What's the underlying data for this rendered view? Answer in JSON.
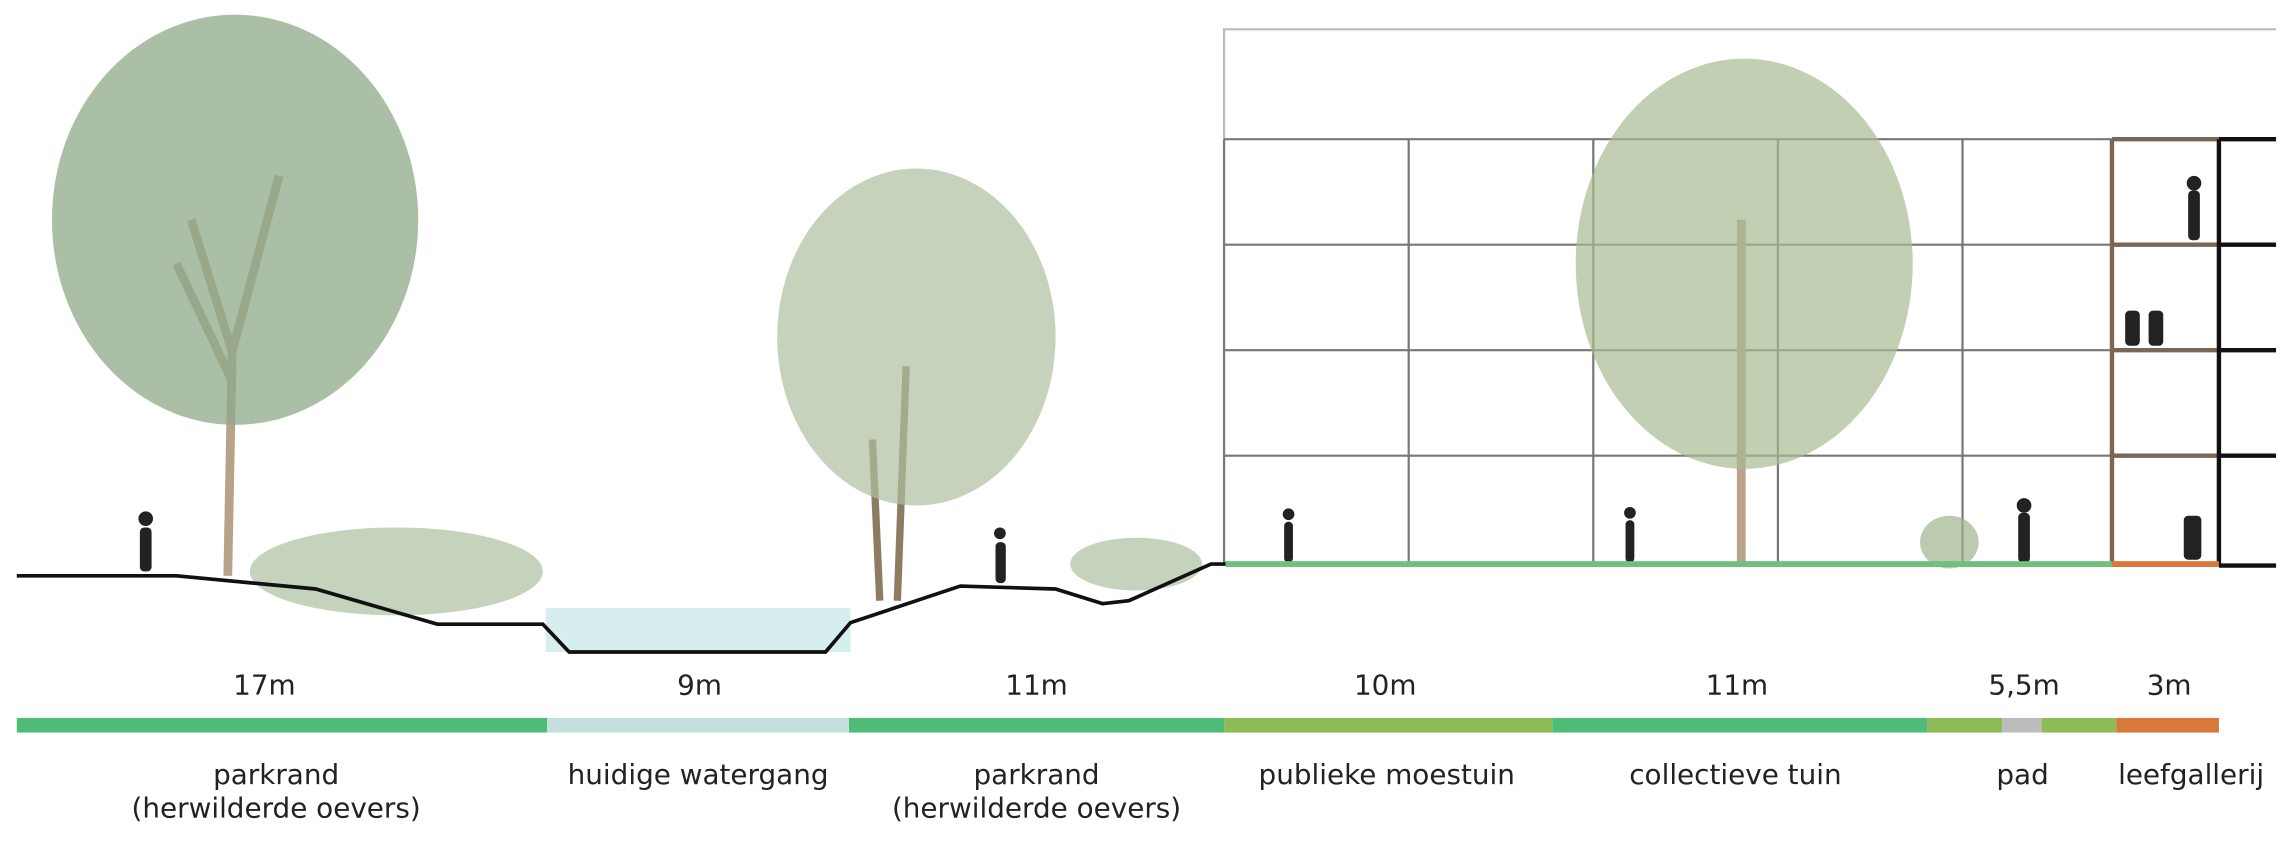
{
  "segments": [
    {
      "width": "17m",
      "label": [
        "parkrand",
        "(herwilderde oevers)"
      ]
    },
    {
      "width": "9m",
      "label": [
        "huidige watergang"
      ]
    },
    {
      "width": "11m",
      "label": [
        "parkrand",
        "(herwilderde oevers)"
      ]
    },
    {
      "width": "10m",
      "label": [
        "publieke moestuin"
      ]
    },
    {
      "width": "11m",
      "label": [
        "collectieve tuin"
      ]
    },
    {
      "width": "5,5m",
      "label": [
        "pad"
      ]
    },
    {
      "width": "3m",
      "label": [
        "leefgallerij"
      ]
    }
  ]
}
